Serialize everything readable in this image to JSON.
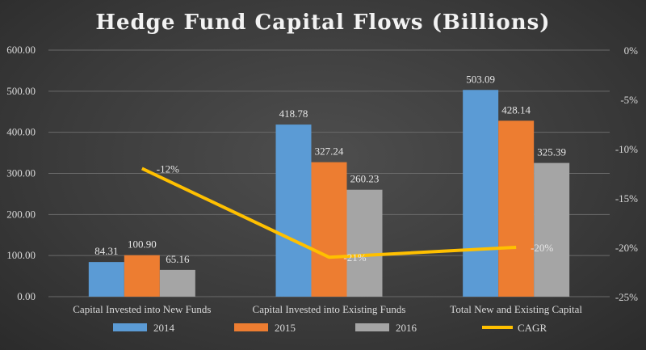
{
  "chart_data": {
    "type": "bar",
    "title": "Hedge Fund Capital Flows (Billions)",
    "categories": [
      "Capital Invested into New Funds",
      "Capital Invested into Existing Funds",
      "Total New and Existing Capital"
    ],
    "series": [
      {
        "name": "2014",
        "color": "#5b9bd5",
        "values": [
          84.31,
          418.78,
          503.09
        ],
        "labels": [
          "84.31",
          "418.78",
          "503.09"
        ]
      },
      {
        "name": "2015",
        "color": "#ed7d31",
        "values": [
          100.9,
          327.24,
          428.14
        ],
        "labels": [
          "100.90",
          "327.24",
          "428.14"
        ]
      },
      {
        "name": "2016",
        "color": "#a5a5a5",
        "values": [
          65.16,
          260.23,
          325.39
        ],
        "labels": [
          "65.16",
          "260.23",
          "325.39"
        ]
      }
    ],
    "line_series": {
      "name": "CAGR",
      "type": "line",
      "axis": "secondary",
      "color": "#ffc000",
      "values": [
        -12,
        -21,
        -20
      ],
      "labels": [
        "-12%",
        "-21%",
        "-20%"
      ]
    },
    "ylim": [
      0,
      600
    ],
    "y_ticks": [
      "0.00",
      "100.00",
      "200.00",
      "300.00",
      "400.00",
      "500.00",
      "600.00"
    ],
    "y2lim": [
      -25,
      0
    ],
    "y2_ticks": [
      "-25%",
      "-20%",
      "-15%",
      "-10%",
      "-5%",
      "0%"
    ],
    "grid": true,
    "legend_position": "bottom"
  }
}
